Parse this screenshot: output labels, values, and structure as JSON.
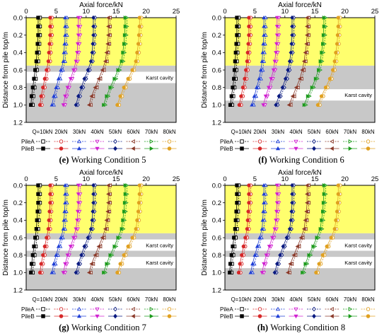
{
  "chart_data": {
    "type": "line",
    "series_meta": [
      {
        "load": "Q=10kN",
        "color": "#000000",
        "marker": "square"
      },
      {
        "load": "20kN",
        "color": "#d62728",
        "marker": "circle"
      },
      {
        "load": "30kN",
        "color": "#1f3fd6",
        "marker": "triangle-up"
      },
      {
        "load": "40kN",
        "color": "#d020d0",
        "marker": "triangle-down"
      },
      {
        "load": "50kN",
        "color": "#0a1a80",
        "marker": "diamond"
      },
      {
        "load": "60kN",
        "color": "#8b3a2a",
        "marker": "triangle-left"
      },
      {
        "load": "70kN",
        "color": "#1a9a1a",
        "marker": "triangle-right"
      },
      {
        "load": "80kN",
        "color": "#e0a020",
        "marker": "circle"
      }
    ],
    "legend": {
      "load_labels": [
        "Q=10kN",
        "20kN",
        "30kN",
        "40kN",
        "50kN",
        "60kN",
        "70kN",
        "80kN"
      ],
      "pileA": "PileA",
      "pileB": "PileB"
    },
    "depths": [
      0.0,
      0.1,
      0.2,
      0.3,
      0.4,
      0.5,
      0.6,
      0.7,
      0.8,
      0.9,
      1.0
    ],
    "charts": [
      {
        "caption_letter": "(e)",
        "caption_text": "Working Condition 5",
        "xlabel": "Axial force/kN",
        "ylabel": "Distance from pile top/m",
        "xlim": [
          0,
          25
        ],
        "ylim": [
          0,
          1.2
        ],
        "xticks": [
          "0",
          "5",
          "10",
          "15",
          "20",
          "25"
        ],
        "yticks": [
          "0.0",
          "0.2",
          "0.4",
          "0.6",
          "0.8",
          "1.0",
          "1.2"
        ],
        "yellow_layer_depth": [
          0,
          0.55
        ],
        "cavities": [
          {
            "from": 0.62,
            "to": 0.75,
            "label": "Karst cavity"
          }
        ],
        "pileA": [
          [
            2.3,
            2.3,
            2.3,
            2.2,
            2.1,
            2.0,
            1.8,
            1.6,
            1.4,
            1.2,
            1.1
          ],
          [
            4.3,
            4.3,
            4.3,
            4.2,
            4.1,
            4.0,
            3.7,
            3.4,
            3.1,
            2.8,
            2.6
          ],
          [
            6.8,
            6.8,
            6.8,
            6.7,
            6.6,
            6.5,
            6.1,
            5.7,
            5.3,
            4.9,
            4.6
          ],
          [
            9.0,
            9.0,
            9.0,
            8.9,
            8.8,
            8.6,
            8.2,
            7.7,
            7.2,
            6.8,
            6.5
          ],
          [
            11.5,
            11.5,
            11.5,
            11.4,
            11.3,
            11.1,
            10.6,
            10.0,
            9.5,
            9.0,
            8.6
          ],
          [
            14.0,
            14.0,
            14.0,
            13.9,
            13.7,
            13.5,
            13.0,
            12.4,
            11.8,
            11.2,
            10.8
          ],
          [
            16.8,
            16.8,
            16.7,
            16.6,
            16.4,
            16.2,
            15.6,
            15.0,
            14.3,
            13.7,
            13.2
          ],
          [
            19.2,
            19.2,
            19.1,
            19.0,
            18.8,
            18.6,
            18.0,
            17.3,
            16.6,
            16.0,
            15.5
          ]
        ],
        "pileB": [
          [
            2.0,
            2.0,
            2.0,
            1.9,
            1.8,
            1.7,
            1.5,
            1.3,
            1.1,
            0.9,
            0.8
          ],
          [
            4.0,
            4.0,
            4.0,
            3.9,
            3.8,
            3.7,
            3.4,
            3.1,
            2.8,
            2.5,
            2.3
          ],
          [
            6.5,
            6.5,
            6.5,
            6.4,
            6.3,
            6.2,
            5.8,
            5.4,
            5.0,
            4.6,
            4.3
          ],
          [
            8.7,
            8.7,
            8.7,
            8.6,
            8.5,
            8.3,
            7.9,
            7.4,
            6.9,
            6.5,
            6.2
          ],
          [
            11.2,
            11.2,
            11.2,
            11.1,
            11.0,
            10.8,
            10.3,
            9.7,
            9.2,
            8.7,
            8.3
          ],
          [
            13.7,
            13.7,
            13.7,
            13.6,
            13.4,
            13.2,
            12.7,
            12.1,
            11.5,
            10.9,
            10.5
          ],
          [
            16.5,
            16.5,
            16.4,
            16.3,
            16.1,
            15.9,
            15.3,
            14.7,
            14.0,
            13.4,
            12.9
          ],
          [
            18.9,
            18.9,
            18.8,
            18.7,
            18.5,
            18.3,
            17.7,
            17.0,
            16.3,
            15.7,
            15.2
          ]
        ]
      },
      {
        "caption_letter": "(f)",
        "caption_text": "Working Condition 6",
        "xlabel": "Axial force/kN",
        "ylabel": "Distance from pile top/m",
        "xlim": [
          0,
          25
        ],
        "ylim": [
          0,
          1.2
        ],
        "xticks": [
          "0",
          "5",
          "10",
          "15",
          "20",
          "25"
        ],
        "yticks": [
          "0.0",
          "0.2",
          "0.4",
          "0.6",
          "0.8",
          "1.0",
          "1.2"
        ],
        "yellow_layer_depth": [
          0,
          0.55
        ],
        "cavities": [
          {
            "from": 0.82,
            "to": 0.95,
            "label": "Karst cavity"
          }
        ],
        "pileA": [
          [
            2.3,
            2.3,
            2.3,
            2.2,
            2.1,
            2.0,
            1.9,
            1.8,
            1.6,
            1.4,
            1.2
          ],
          [
            4.3,
            4.3,
            4.3,
            4.2,
            4.1,
            4.0,
            3.8,
            3.6,
            3.3,
            3.0,
            2.7
          ],
          [
            6.8,
            6.8,
            6.8,
            6.7,
            6.6,
            6.5,
            6.3,
            6.0,
            5.6,
            5.2,
            4.8
          ],
          [
            9.0,
            9.0,
            9.0,
            8.9,
            8.8,
            8.6,
            8.4,
            8.0,
            7.6,
            7.1,
            6.7
          ],
          [
            11.5,
            11.5,
            11.5,
            11.4,
            11.3,
            11.1,
            10.8,
            10.4,
            9.9,
            9.3,
            8.8
          ],
          [
            14.0,
            14.0,
            14.0,
            13.9,
            13.7,
            13.5,
            13.2,
            12.8,
            12.2,
            11.6,
            11.0
          ],
          [
            16.8,
            16.8,
            16.7,
            16.6,
            16.4,
            16.2,
            15.9,
            15.4,
            14.8,
            14.1,
            13.5
          ],
          [
            19.2,
            19.2,
            19.1,
            19.0,
            18.8,
            18.6,
            18.3,
            17.8,
            17.1,
            16.4,
            15.8
          ]
        ],
        "pileB": [
          [
            2.0,
            2.0,
            2.0,
            1.9,
            1.8,
            1.7,
            1.6,
            1.5,
            1.3,
            1.1,
            0.9
          ],
          [
            4.0,
            4.0,
            4.0,
            3.9,
            3.8,
            3.7,
            3.5,
            3.3,
            3.0,
            2.7,
            2.4
          ],
          [
            6.5,
            6.5,
            6.5,
            6.4,
            6.3,
            6.2,
            6.0,
            5.7,
            5.3,
            4.9,
            4.5
          ],
          [
            8.7,
            8.7,
            8.7,
            8.6,
            8.5,
            8.3,
            8.1,
            7.7,
            7.3,
            6.8,
            6.4
          ],
          [
            11.2,
            11.2,
            11.2,
            11.1,
            11.0,
            10.8,
            10.5,
            10.1,
            9.6,
            9.0,
            8.5
          ],
          [
            13.7,
            13.7,
            13.7,
            13.6,
            13.4,
            13.2,
            12.9,
            12.5,
            11.9,
            11.3,
            10.7
          ],
          [
            16.5,
            16.5,
            16.4,
            16.3,
            16.1,
            15.9,
            15.6,
            15.1,
            14.5,
            13.8,
            13.2
          ],
          [
            18.9,
            18.9,
            18.8,
            18.7,
            18.5,
            18.3,
            18.0,
            17.5,
            16.8,
            16.1,
            15.5
          ]
        ]
      },
      {
        "caption_letter": "(g)",
        "caption_text": "Working Condition 7",
        "xlabel": "Axial force/kN",
        "ylabel": "Distance from pile top/m",
        "xlim": [
          0,
          25
        ],
        "ylim": [
          0,
          1.2
        ],
        "xticks": [
          "0",
          "5",
          "10",
          "15",
          "20",
          "25"
        ],
        "yticks": [
          "0.0",
          "0.2",
          "0.4",
          "0.6",
          "0.8",
          "1.0",
          "1.2"
        ],
        "yellow_layer_depth": [
          0,
          0.55
        ],
        "cavities": [
          {
            "from": 0.62,
            "to": 0.75,
            "label": "Karst cavity"
          },
          {
            "from": 0.82,
            "to": 0.95,
            "label": "Karst cavity"
          }
        ],
        "pileA": [
          [
            2.3,
            2.3,
            2.3,
            2.2,
            2.1,
            2.0,
            1.8,
            1.6,
            1.4,
            1.2,
            1.1
          ],
          [
            4.3,
            4.3,
            4.3,
            4.2,
            4.1,
            4.0,
            3.7,
            3.4,
            3.1,
            2.8,
            2.6
          ],
          [
            6.8,
            6.8,
            6.8,
            6.7,
            6.6,
            6.5,
            6.1,
            5.7,
            5.3,
            4.9,
            4.6
          ],
          [
            9.0,
            9.0,
            9.0,
            8.9,
            8.8,
            8.6,
            8.2,
            7.7,
            7.2,
            6.8,
            6.5
          ],
          [
            11.5,
            11.5,
            11.5,
            11.4,
            11.3,
            11.1,
            10.6,
            10.0,
            9.5,
            9.0,
            8.6
          ],
          [
            14.0,
            14.0,
            14.0,
            13.9,
            13.7,
            13.5,
            13.0,
            12.4,
            11.8,
            11.2,
            10.8
          ],
          [
            16.8,
            16.8,
            16.7,
            16.6,
            16.4,
            16.2,
            15.6,
            15.0,
            14.3,
            13.7,
            13.2
          ],
          [
            19.2,
            19.2,
            19.1,
            19.0,
            18.8,
            18.6,
            18.0,
            17.3,
            16.6,
            16.0,
            15.5
          ]
        ],
        "pileB": [
          [
            2.0,
            2.0,
            2.0,
            1.9,
            1.8,
            1.7,
            1.5,
            1.3,
            1.1,
            0.9,
            0.8
          ],
          [
            4.0,
            4.0,
            4.0,
            3.9,
            3.8,
            3.7,
            3.4,
            3.1,
            2.8,
            2.5,
            2.3
          ],
          [
            6.5,
            6.5,
            6.5,
            6.4,
            6.3,
            6.2,
            5.8,
            5.4,
            5.0,
            4.6,
            4.3
          ],
          [
            8.7,
            8.7,
            8.7,
            8.6,
            8.5,
            8.3,
            7.9,
            7.4,
            6.9,
            6.5,
            6.2
          ],
          [
            11.2,
            11.2,
            11.2,
            11.1,
            11.0,
            10.8,
            10.3,
            9.7,
            9.2,
            8.7,
            8.3
          ],
          [
            13.7,
            13.7,
            13.7,
            13.6,
            13.4,
            13.2,
            12.7,
            12.1,
            11.5,
            10.9,
            10.5
          ],
          [
            16.5,
            16.5,
            16.4,
            16.3,
            16.1,
            15.9,
            15.3,
            14.7,
            14.0,
            13.4,
            12.9
          ],
          [
            18.9,
            18.9,
            18.8,
            18.7,
            18.5,
            18.3,
            17.7,
            17.0,
            16.3,
            15.7,
            15.2
          ]
        ]
      },
      {
        "caption_letter": "(h)",
        "caption_text": "Working Condition 8",
        "xlabel": "Axial force/kN",
        "ylabel": "Distance from pile top/m",
        "xlim": [
          0,
          25
        ],
        "ylim": [
          0,
          1.2
        ],
        "xticks": [
          "0",
          "5",
          "10",
          "15",
          "20",
          "25"
        ],
        "yticks": [
          "0.0",
          "0.2",
          "0.4",
          "0.6",
          "0.8",
          "1.0",
          "1.2"
        ],
        "yellow_layer_depth": [
          0,
          0.55
        ],
        "cavities": [
          {
            "from": 0.62,
            "to": 0.75,
            "label": "Karst cavity"
          },
          {
            "from": 0.82,
            "to": 0.95,
            "label": "Karst cavity"
          }
        ],
        "pileA": [
          [
            2.3,
            2.3,
            2.3,
            2.2,
            2.1,
            2.0,
            1.8,
            1.6,
            1.4,
            1.2,
            1.1
          ],
          [
            4.3,
            4.3,
            4.3,
            4.2,
            4.1,
            4.0,
            3.7,
            3.4,
            3.1,
            2.8,
            2.6
          ],
          [
            6.8,
            6.8,
            6.8,
            6.7,
            6.6,
            6.5,
            6.1,
            5.7,
            5.3,
            4.9,
            4.6
          ],
          [
            9.0,
            9.0,
            9.0,
            8.9,
            8.8,
            8.6,
            8.2,
            7.7,
            7.2,
            6.8,
            6.5
          ],
          [
            11.5,
            11.5,
            11.5,
            11.4,
            11.3,
            11.1,
            10.6,
            10.0,
            9.5,
            9.0,
            8.6
          ],
          [
            14.0,
            14.0,
            14.0,
            13.9,
            13.7,
            13.5,
            13.0,
            12.4,
            11.8,
            11.2,
            10.8
          ],
          [
            16.8,
            16.8,
            16.7,
            16.6,
            16.4,
            16.2,
            15.6,
            15.0,
            14.3,
            13.7,
            13.2
          ],
          [
            19.2,
            19.2,
            19.1,
            19.0,
            18.8,
            18.6,
            18.0,
            17.3,
            16.6,
            16.0,
            15.5
          ]
        ],
        "pileB": [
          [
            2.0,
            2.0,
            2.0,
            1.9,
            1.8,
            1.7,
            1.5,
            1.3,
            1.1,
            0.9,
            0.8
          ],
          [
            4.0,
            4.0,
            4.0,
            3.9,
            3.8,
            3.7,
            3.4,
            3.1,
            2.8,
            2.5,
            2.3
          ],
          [
            6.5,
            6.5,
            6.5,
            6.4,
            6.3,
            6.2,
            5.8,
            5.4,
            5.0,
            4.6,
            4.3
          ],
          [
            8.7,
            8.7,
            8.7,
            8.6,
            8.5,
            8.3,
            7.9,
            7.4,
            6.9,
            6.5,
            6.2
          ],
          [
            11.2,
            11.2,
            11.2,
            11.1,
            11.0,
            10.8,
            10.3,
            9.7,
            9.2,
            8.7,
            8.3
          ],
          [
            13.7,
            13.7,
            13.7,
            13.6,
            13.4,
            13.2,
            12.7,
            12.1,
            11.5,
            10.9,
            10.5
          ],
          [
            16.5,
            16.5,
            16.4,
            16.3,
            16.1,
            15.9,
            15.3,
            14.7,
            14.0,
            13.4,
            12.9
          ],
          [
            18.9,
            18.9,
            18.8,
            18.7,
            18.5,
            18.3,
            17.7,
            17.0,
            16.3,
            15.7,
            15.2
          ]
        ]
      }
    ]
  }
}
